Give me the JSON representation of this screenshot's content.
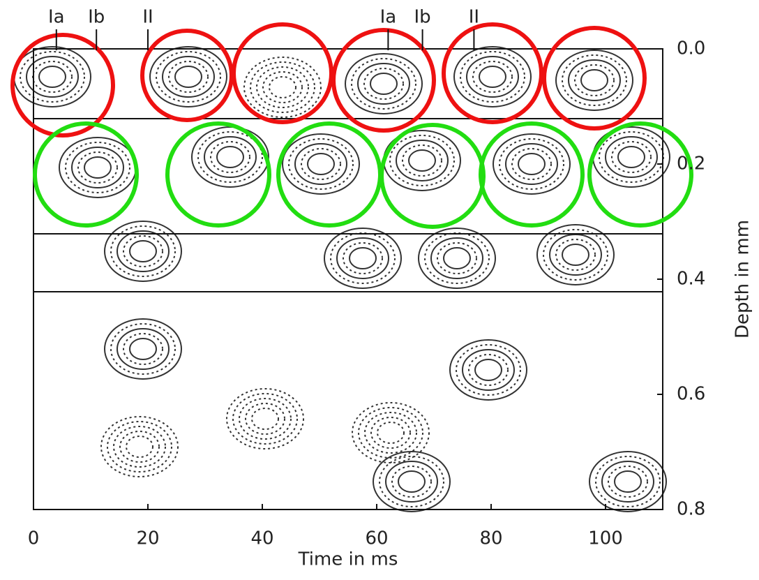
{
  "chart_data": {
    "type": "contour",
    "xlabel": "Time in ms",
    "ylabel": "Depth in mm",
    "xlim": [
      0,
      110
    ],
    "xticks": [
      0,
      20,
      40,
      60,
      80,
      100
    ],
    "ylim": [
      0,
      0.8
    ],
    "yticks": [
      {
        "value": 0,
        "label": "0.0"
      },
      0.2,
      0.4,
      0.6,
      0.8
    ],
    "annotations": [
      {
        "text": "Ia",
        "x": 4
      },
      {
        "text": "Ib",
        "x": 11
      },
      {
        "text": "II",
        "x": 20
      },
      {
        "text": "Ia",
        "x": 62
      },
      {
        "text": "Ib",
        "x": 68
      },
      {
        "text": "II",
        "x": 77
      }
    ]
  }
}
